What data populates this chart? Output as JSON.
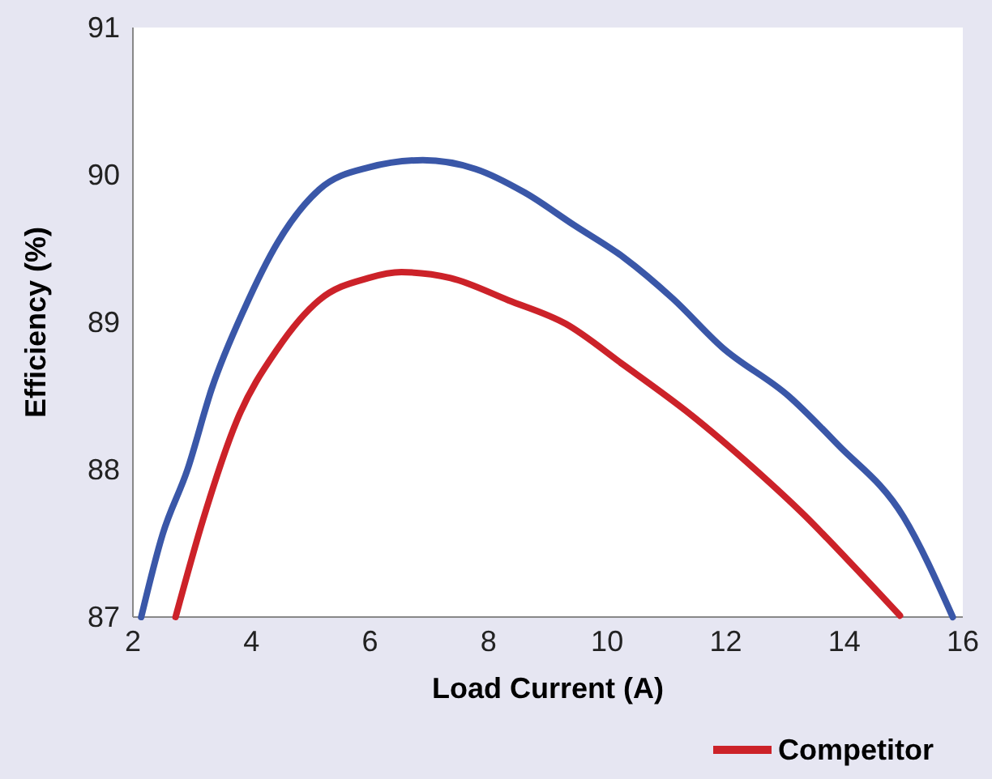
{
  "chart_data": {
    "type": "line",
    "xlabel": "Load Current (A)",
    "ylabel": "Efficiency (%)",
    "xlim": [
      2,
      16
    ],
    "xticks": [
      2,
      4,
      6,
      8,
      10,
      12,
      14,
      16
    ],
    "ylim": [
      87,
      91
    ],
    "yticks": [
      87,
      88,
      89,
      90,
      91
    ],
    "legend": "bottom",
    "marker": "none",
    "line_style": "solid",
    "series": [
      {
        "color": "#3a57a8",
        "x": [
          2.14,
          2.5,
          2.92,
          3.33,
          3.89,
          4.44,
          5.14,
          5.97,
          6.89,
          7.78,
          8.61,
          9.44,
          10.28,
          11.11,
          11.94,
          13.06,
          13.89,
          15.0,
          15.83
        ],
        "values": [
          87.0,
          87.56,
          88.0,
          88.55,
          89.1,
          89.54,
          89.9,
          90.05,
          90.1,
          90.04,
          89.88,
          89.66,
          89.44,
          89.16,
          88.83,
          88.5,
          88.17,
          87.68,
          87.0
        ]
      },
      {
        "name": "Competitor",
        "color": "#cc2229",
        "x": [
          2.72,
          3.19,
          3.75,
          4.44,
          5.14,
          5.97,
          6.53,
          7.36,
          8.33,
          9.3,
          10.28,
          11.39,
          12.5,
          13.33,
          14.03,
          14.94
        ],
        "values": [
          87.0,
          87.67,
          88.33,
          88.82,
          89.15,
          89.3,
          89.34,
          89.3,
          89.15,
          88.99,
          88.71,
          88.38,
          88.0,
          87.69,
          87.4,
          87.01
        ]
      }
    ]
  }
}
